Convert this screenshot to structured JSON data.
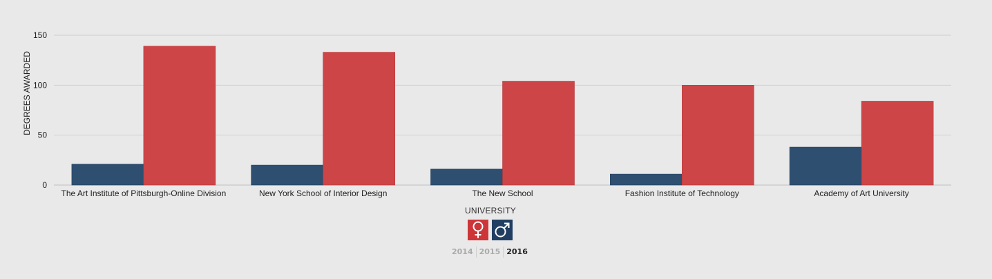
{
  "chart_data": {
    "type": "bar",
    "categories": [
      "The Art Institute of Pittsburgh-Online Division",
      "New York School of Interior Design",
      "The New School",
      "Fashion Institute of Technology",
      "Academy of Art University"
    ],
    "series": [
      {
        "key": "male",
        "values": [
          21,
          20,
          16,
          11,
          38
        ],
        "color": "#2e4f70"
      },
      {
        "key": "female",
        "values": [
          139,
          133,
          104,
          100,
          84
        ],
        "color": "#cd4547"
      }
    ],
    "xlabel": "UNIVERSITY",
    "ylabel": "DEGREES AWARDED",
    "ylim": [
      0,
      150
    ],
    "yticks": [
      0,
      50,
      100,
      150
    ],
    "grid": true
  },
  "legend": {
    "female": {
      "icon": "female-symbol-icon",
      "color": "#cd3538"
    },
    "male": {
      "icon": "male-symbol-icon",
      "color": "#203e62"
    }
  },
  "years": [
    {
      "label": "2014",
      "active": false
    },
    {
      "label": "2015",
      "active": false
    },
    {
      "label": "2016",
      "active": true
    }
  ]
}
